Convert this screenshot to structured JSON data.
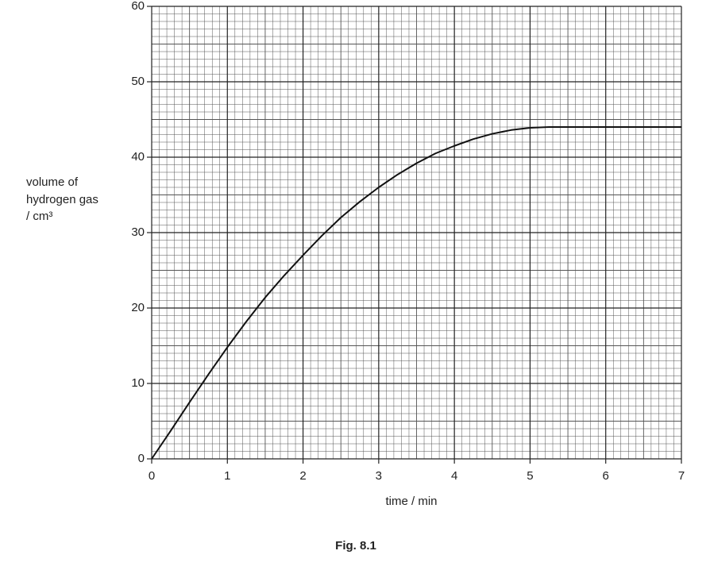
{
  "chart_data": {
    "type": "line",
    "ylabel": [
      "volume of",
      "hydrogen gas",
      "/ cm³"
    ],
    "xlabel": "time / min",
    "caption": "Fig. 8.1",
    "x": [
      0,
      0.25,
      0.5,
      0.75,
      1,
      1.25,
      1.5,
      1.75,
      2,
      2.25,
      2.5,
      2.75,
      3,
      3.25,
      3.5,
      3.75,
      4,
      4.25,
      4.5,
      4.75,
      5,
      5.25,
      5.5,
      6,
      6.5,
      7
    ],
    "series": [
      {
        "color": "#111111",
        "values": [
          0,
          3.7,
          7.5,
          11.2,
          14.8,
          18.2,
          21.4,
          24.3,
          27,
          29.6,
          32,
          34.1,
          36,
          37.7,
          39.2,
          40.5,
          41.5,
          42.4,
          43.1,
          43.6,
          43.9,
          44,
          44,
          44,
          44,
          44
        ]
      }
    ],
    "xlim": [
      0,
      7
    ],
    "xticks": [
      0,
      1,
      2,
      3,
      4,
      5,
      6,
      7
    ],
    "ylim": [
      0,
      60
    ],
    "yticks": [
      0,
      10,
      20,
      30,
      40,
      50,
      60
    ],
    "grid": true
  }
}
